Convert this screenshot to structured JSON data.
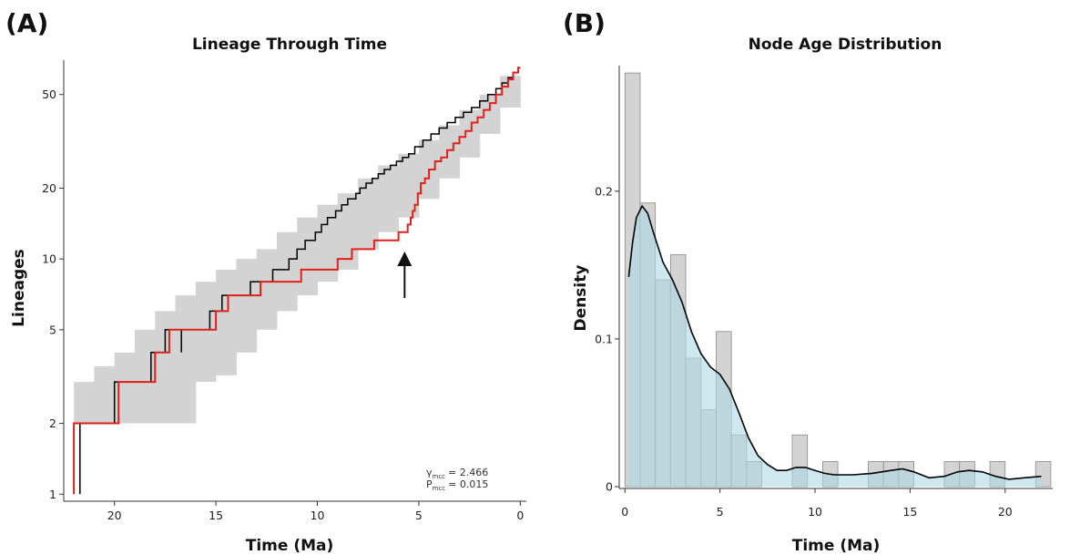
{
  "panel_labels": [
    "(A)",
    "(B)"
  ],
  "colors": {
    "band": "#d3d3d3",
    "mcc_line": "#000000",
    "observed_line": "#e0211b",
    "hist_bar": "#d3d3d3",
    "hist_bar_stroke": "#8a8a8a",
    "density_fill": "#add8e6",
    "density_line": "#000000",
    "axis": "#333333"
  },
  "chart_data": [
    {
      "panel": "(A)",
      "type": "line",
      "title": "Lineage Through Time",
      "xlabel": "Time (Ma)",
      "ylabel": "Lineages",
      "x_reversed": true,
      "y_scale": "log",
      "xlim": [
        22.5,
        -0.3
      ],
      "ylim": [
        0.95,
        70
      ],
      "xticks": [
        20,
        15,
        10,
        5,
        0
      ],
      "yticks": [
        1,
        2,
        5,
        10,
        20,
        50
      ],
      "annotation": {
        "gamma_label": "γ",
        "gamma_sub": "mcc",
        "gamma_value": "= 2.466",
        "p_label": "P",
        "p_sub": "mcc",
        "p_value": "= 0.015"
      },
      "arrow_x": 5.7,
      "series": [
        {
          "role": "mcc",
          "style": "step",
          "points": [
            [
              21.7,
              1
            ],
            [
              21.7,
              2
            ],
            [
              20,
              2
            ],
            [
              20,
              3
            ],
            [
              18.2,
              3
            ],
            [
              18.2,
              4
            ],
            [
              17.5,
              4
            ],
            [
              17.5,
              5
            ],
            [
              16.7,
              5
            ],
            [
              16.7,
              4
            ],
            [
              16.7,
              5
            ],
            [
              15.3,
              5
            ],
            [
              15.3,
              6
            ],
            [
              14.7,
              6
            ],
            [
              14.7,
              7
            ],
            [
              13.3,
              7
            ],
            [
              13.3,
              8
            ],
            [
              12.2,
              8
            ],
            [
              12.2,
              9
            ],
            [
              11.4,
              9
            ],
            [
              11.4,
              10
            ],
            [
              11.0,
              10
            ],
            [
              11.0,
              11
            ],
            [
              10.6,
              11
            ],
            [
              10.6,
              12
            ],
            [
              10.1,
              12
            ],
            [
              10.1,
              13
            ],
            [
              9.8,
              13
            ],
            [
              9.8,
              14
            ],
            [
              9.5,
              14
            ],
            [
              9.5,
              15
            ],
            [
              9.1,
              15
            ],
            [
              9.1,
              16
            ],
            [
              8.8,
              16
            ],
            [
              8.8,
              17
            ],
            [
              8.5,
              17
            ],
            [
              8.5,
              18
            ],
            [
              8.1,
              18
            ],
            [
              8.1,
              19
            ],
            [
              7.9,
              19
            ],
            [
              7.9,
              20
            ],
            [
              7.6,
              20
            ],
            [
              7.6,
              21
            ],
            [
              7.3,
              21
            ],
            [
              7.3,
              22
            ],
            [
              7.0,
              22
            ],
            [
              7.0,
              23
            ],
            [
              6.7,
              23
            ],
            [
              6.7,
              24
            ],
            [
              6.4,
              24
            ],
            [
              6.4,
              25
            ],
            [
              6.1,
              25
            ],
            [
              6.1,
              26
            ],
            [
              5.8,
              26
            ],
            [
              5.8,
              27
            ],
            [
              5.5,
              27
            ],
            [
              5.5,
              28
            ],
            [
              5.2,
              28
            ],
            [
              5.2,
              30
            ],
            [
              4.8,
              30
            ],
            [
              4.8,
              32
            ],
            [
              4.4,
              32
            ],
            [
              4.4,
              34
            ],
            [
              4.0,
              34
            ],
            [
              4.0,
              36
            ],
            [
              3.6,
              36
            ],
            [
              3.6,
              38
            ],
            [
              3.2,
              38
            ],
            [
              3.2,
              40
            ],
            [
              2.8,
              40
            ],
            [
              2.8,
              42
            ],
            [
              2.4,
              42
            ],
            [
              2.4,
              44
            ],
            [
              2.0,
              44
            ],
            [
              2.0,
              47
            ],
            [
              1.6,
              47
            ],
            [
              1.6,
              50
            ],
            [
              1.2,
              50
            ],
            [
              1.2,
              53
            ],
            [
              0.9,
              53
            ],
            [
              0.9,
              56
            ],
            [
              0.6,
              56
            ],
            [
              0.6,
              59
            ],
            [
              0.35,
              59
            ],
            [
              0.35,
              62
            ],
            [
              0.1,
              62
            ],
            [
              0.1,
              65
            ],
            [
              0,
              65
            ]
          ]
        },
        {
          "role": "observed",
          "style": "step",
          "points": [
            [
              22.0,
              1
            ],
            [
              22.0,
              2
            ],
            [
              19.8,
              2
            ],
            [
              19.8,
              3
            ],
            [
              18.0,
              3
            ],
            [
              18.0,
              4
            ],
            [
              17.3,
              4
            ],
            [
              17.3,
              5
            ],
            [
              15.0,
              5
            ],
            [
              15.0,
              6
            ],
            [
              14.4,
              6
            ],
            [
              14.4,
              7
            ],
            [
              12.8,
              7
            ],
            [
              12.8,
              8
            ],
            [
              10.8,
              8
            ],
            [
              10.8,
              9
            ],
            [
              9.0,
              9
            ],
            [
              9.0,
              10
            ],
            [
              8.3,
              10
            ],
            [
              8.3,
              11
            ],
            [
              7.2,
              11
            ],
            [
              7.2,
              12
            ],
            [
              6.0,
              12
            ],
            [
              6.0,
              13
            ],
            [
              5.55,
              13
            ],
            [
              5.55,
              14
            ],
            [
              5.4,
              14
            ],
            [
              5.4,
              15
            ],
            [
              5.3,
              15
            ],
            [
              5.3,
              16
            ],
            [
              5.2,
              16
            ],
            [
              5.2,
              17
            ],
            [
              5.05,
              17
            ],
            [
              5.05,
              19
            ],
            [
              4.9,
              19
            ],
            [
              4.9,
              21
            ],
            [
              4.7,
              21
            ],
            [
              4.7,
              22
            ],
            [
              4.5,
              22
            ],
            [
              4.5,
              24
            ],
            [
              4.2,
              24
            ],
            [
              4.2,
              26
            ],
            [
              3.9,
              26
            ],
            [
              3.9,
              27
            ],
            [
              3.6,
              27
            ],
            [
              3.6,
              29
            ],
            [
              3.3,
              29
            ],
            [
              3.3,
              31
            ],
            [
              3.0,
              31
            ],
            [
              3.0,
              33
            ],
            [
              2.7,
              33
            ],
            [
              2.7,
              35
            ],
            [
              2.4,
              35
            ],
            [
              2.4,
              38
            ],
            [
              2.1,
              38
            ],
            [
              2.1,
              40
            ],
            [
              1.8,
              40
            ],
            [
              1.8,
              43
            ],
            [
              1.5,
              43
            ],
            [
              1.5,
              46
            ],
            [
              1.2,
              46
            ],
            [
              1.2,
              50
            ],
            [
              0.9,
              50
            ],
            [
              0.9,
              54
            ],
            [
              0.6,
              54
            ],
            [
              0.6,
              58
            ],
            [
              0.35,
              58
            ],
            [
              0.35,
              62
            ],
            [
              0.1,
              62
            ],
            [
              0.1,
              65
            ],
            [
              0,
              65
            ]
          ]
        }
      ],
      "band": [
        {
          "x0": 22.0,
          "x1": 21.0,
          "lo": 2,
          "hi": 3
        },
        {
          "x0": 21.0,
          "x1": 20.0,
          "lo": 2,
          "hi": 3.5
        },
        {
          "x0": 20.0,
          "x1": 19.0,
          "lo": 2,
          "hi": 4
        },
        {
          "x0": 19.0,
          "x1": 18.0,
          "lo": 2,
          "hi": 5
        },
        {
          "x0": 18.0,
          "x1": 17.0,
          "lo": 2,
          "hi": 6
        },
        {
          "x0": 17.0,
          "x1": 16.0,
          "lo": 2,
          "hi": 7
        },
        {
          "x0": 16.0,
          "x1": 15.0,
          "lo": 3,
          "hi": 8
        },
        {
          "x0": 15.0,
          "x1": 14.0,
          "lo": 3.2,
          "hi": 9
        },
        {
          "x0": 14.0,
          "x1": 13.0,
          "lo": 4,
          "hi": 10
        },
        {
          "x0": 13.0,
          "x1": 12.0,
          "lo": 5,
          "hi": 11
        },
        {
          "x0": 12.0,
          "x1": 11.0,
          "lo": 6,
          "hi": 13
        },
        {
          "x0": 11.0,
          "x1": 10.0,
          "lo": 7,
          "hi": 15
        },
        {
          "x0": 10.0,
          "x1": 9.0,
          "lo": 8,
          "hi": 17
        },
        {
          "x0": 9.0,
          "x1": 8.0,
          "lo": 9,
          "hi": 19
        },
        {
          "x0": 8.0,
          "x1": 7.0,
          "lo": 11,
          "hi": 22
        },
        {
          "x0": 7.0,
          "x1": 6.0,
          "lo": 13,
          "hi": 25
        },
        {
          "x0": 6.0,
          "x1": 5.0,
          "lo": 15,
          "hi": 28
        },
        {
          "x0": 5.0,
          "x1": 4.0,
          "lo": 18,
          "hi": 32
        },
        {
          "x0": 4.0,
          "x1": 3.0,
          "lo": 22,
          "hi": 37
        },
        {
          "x0": 3.0,
          "x1": 2.0,
          "lo": 27,
          "hi": 43
        },
        {
          "x0": 2.0,
          "x1": 1.0,
          "lo": 34,
          "hi": 50
        },
        {
          "x0": 1.0,
          "x1": 0.0,
          "lo": 44,
          "hi": 60
        }
      ]
    },
    {
      "panel": "(B)",
      "type": "bar",
      "title": "Node Age Distribution",
      "xlabel": "Time (Ma)",
      "ylabel": "Density",
      "xlim": [
        -0.3,
        22.5
      ],
      "ylim": [
        0,
        0.285
      ],
      "xticks": [
        0,
        5,
        10,
        15,
        20
      ],
      "yticks": [
        0,
        0.1,
        0.2
      ],
      "ytick_labels": [
        "0",
        "0.1",
        "0.2"
      ],
      "bin_width": 0.8,
      "bin_start": 0,
      "bars": [
        0.28,
        0.192,
        0.14,
        0.157,
        0.087,
        0.052,
        0.105,
        0.035,
        0.017,
        0,
        0,
        0.035,
        0,
        0.017,
        0,
        0,
        0.017,
        0.017,
        0.017,
        0,
        0,
        0.017,
        0.017,
        0,
        0.017,
        0,
        0,
        0.017
      ],
      "density_curve": [
        [
          0.2,
          0.142
        ],
        [
          0.4,
          0.165
        ],
        [
          0.6,
          0.182
        ],
        [
          0.9,
          0.19
        ],
        [
          1.2,
          0.185
        ],
        [
          1.5,
          0.172
        ],
        [
          2.0,
          0.152
        ],
        [
          2.5,
          0.14
        ],
        [
          3.0,
          0.125
        ],
        [
          3.5,
          0.105
        ],
        [
          4.0,
          0.09
        ],
        [
          4.5,
          0.081
        ],
        [
          5.0,
          0.076
        ],
        [
          5.5,
          0.066
        ],
        [
          6.0,
          0.05
        ],
        [
          6.5,
          0.033
        ],
        [
          7.0,
          0.021
        ],
        [
          7.5,
          0.015
        ],
        [
          8.0,
          0.011
        ],
        [
          8.5,
          0.011
        ],
        [
          9.0,
          0.013
        ],
        [
          9.5,
          0.013
        ],
        [
          10.0,
          0.011
        ],
        [
          10.5,
          0.009
        ],
        [
          11.0,
          0.008
        ],
        [
          12.0,
          0.008
        ],
        [
          13.0,
          0.009
        ],
        [
          14.0,
          0.011
        ],
        [
          14.6,
          0.012
        ],
        [
          15.2,
          0.01
        ],
        [
          16.0,
          0.006
        ],
        [
          16.8,
          0.007
        ],
        [
          17.5,
          0.01
        ],
        [
          18.1,
          0.011
        ],
        [
          18.8,
          0.01
        ],
        [
          19.5,
          0.007
        ],
        [
          20.2,
          0.005
        ],
        [
          21.0,
          0.006
        ],
        [
          21.9,
          0.007
        ]
      ]
    }
  ]
}
